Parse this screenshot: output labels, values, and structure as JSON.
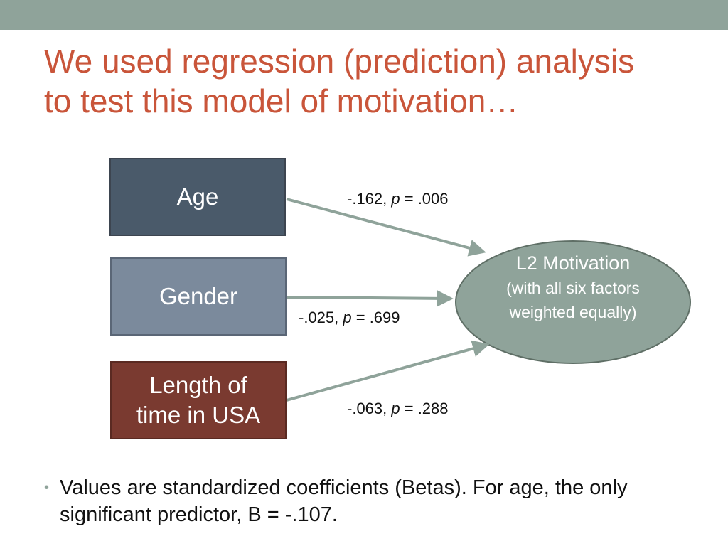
{
  "title": {
    "lines": [
      "We used regression (prediction) analysis",
      "to test this model of motivation…"
    ]
  },
  "predictors": [
    {
      "label": "Age"
    },
    {
      "label": "Gender"
    },
    {
      "label": "Length of time in USA"
    }
  ],
  "outcome": {
    "label": "L2 Motivation",
    "note": "(with all six factors weighted equally)"
  },
  "edges": [
    {
      "coef": "-.162, ",
      "p": "p",
      "p_value": " = .006"
    },
    {
      "coef": "-.025, ",
      "p": "p",
      "p_value": " = .699"
    },
    {
      "coef": "-.063, ",
      "p": "p",
      "p_value": " = .288"
    }
  ],
  "bullets": [
    "Values are standardized coefficients (Betas). For age, the only significant predictor, B = -.107."
  ]
}
